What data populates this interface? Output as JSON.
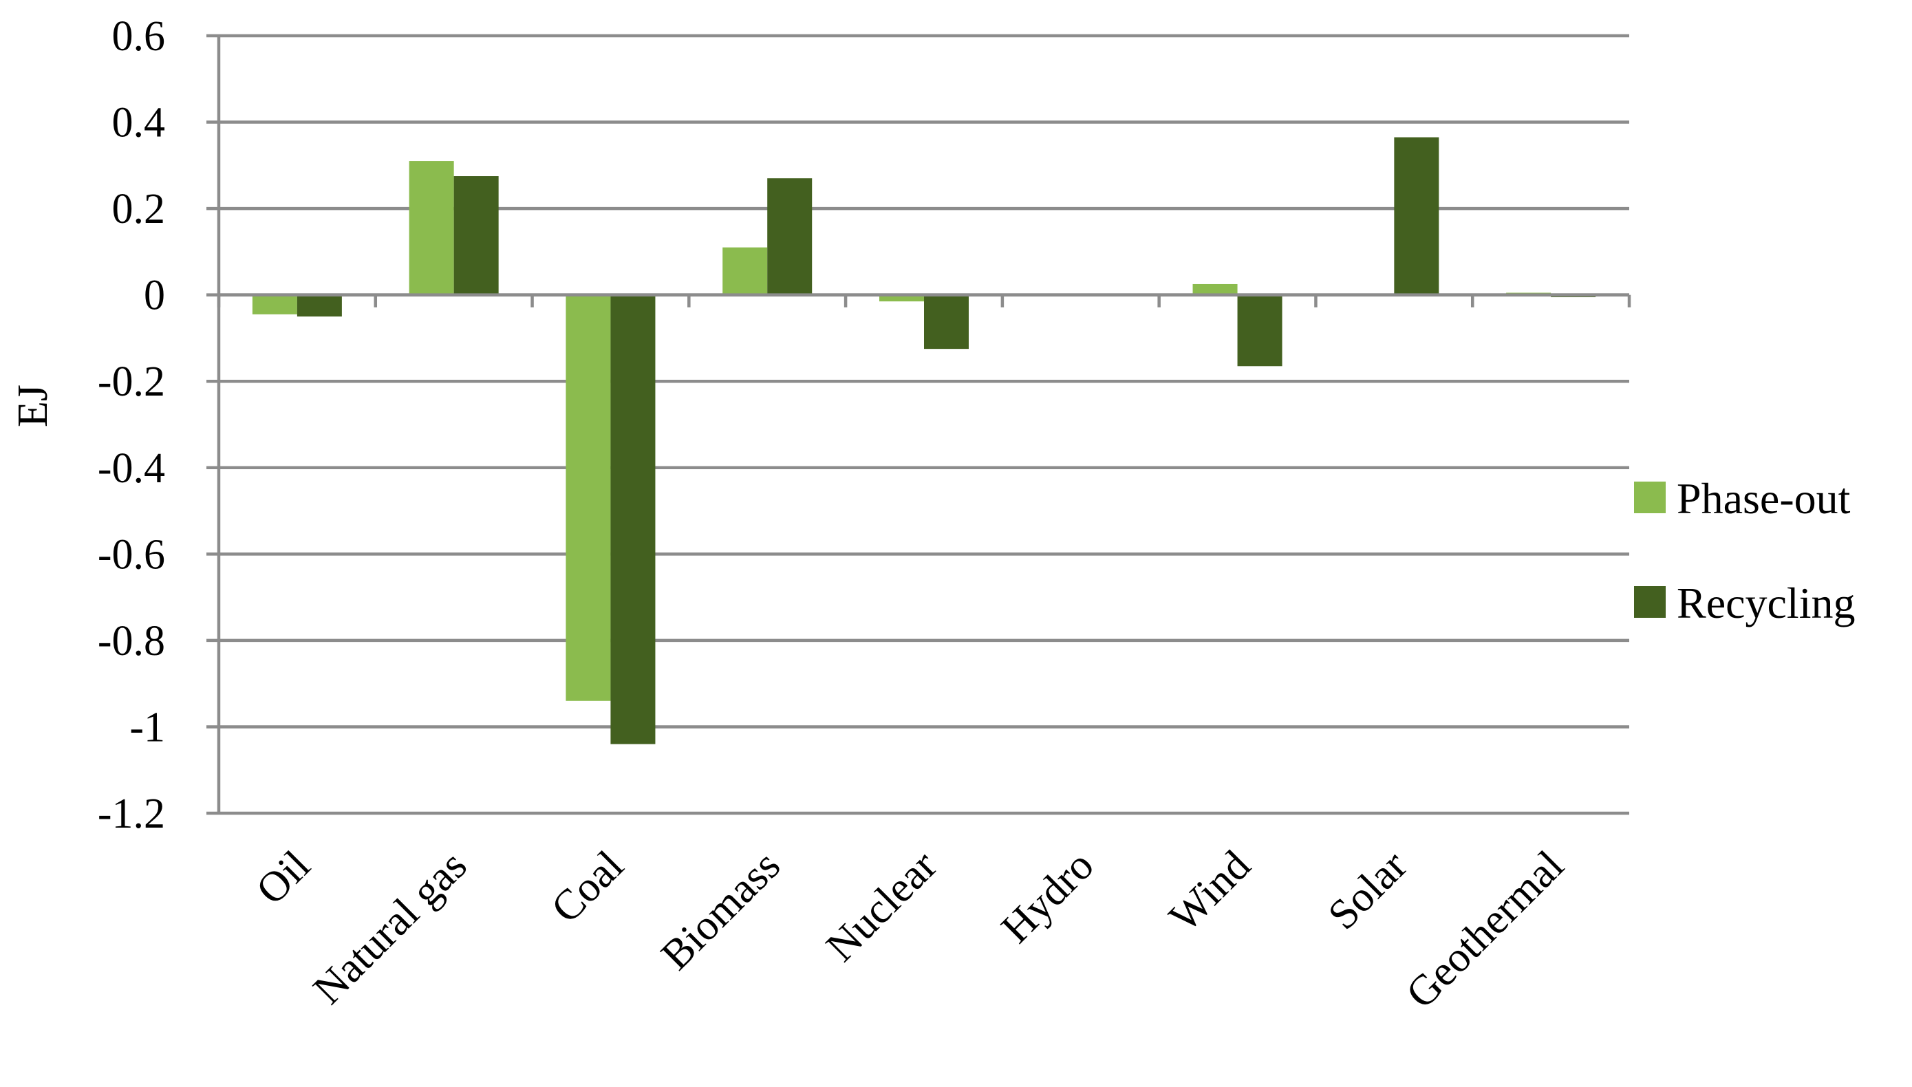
{
  "chart_data": {
    "type": "bar",
    "title": "",
    "xlabel": "",
    "ylabel": "EJ",
    "ylim": [
      -1.2,
      0.6
    ],
    "yticks": [
      0.6,
      0.4,
      0.2,
      0,
      -0.2,
      -0.4,
      -0.6,
      -0.8,
      -1,
      -1.2
    ],
    "ytick_labels": [
      "0.6",
      "0.4",
      "0.2",
      "0",
      "-0.2",
      "-0.4",
      "-0.6",
      "-0.8",
      "-1",
      "-1.2"
    ],
    "categories": [
      "Oil",
      "Natural gas",
      "Coal",
      "Biomass",
      "Nuclear",
      "Hydro",
      "Wind",
      "Solar",
      "Geothermal"
    ],
    "series": [
      {
        "name": "Phase-out",
        "color": "#8bbb4e",
        "values": [
          -0.045,
          0.31,
          -0.94,
          0.11,
          -0.015,
          0.0,
          0.025,
          0.0,
          0.005
        ]
      },
      {
        "name": "Recycling",
        "color": "#43601f",
        "values": [
          -0.05,
          0.275,
          -1.04,
          0.27,
          -0.125,
          0.0,
          -0.165,
          0.365,
          -0.005
        ]
      }
    ],
    "grid": true,
    "legend_position": "right"
  }
}
